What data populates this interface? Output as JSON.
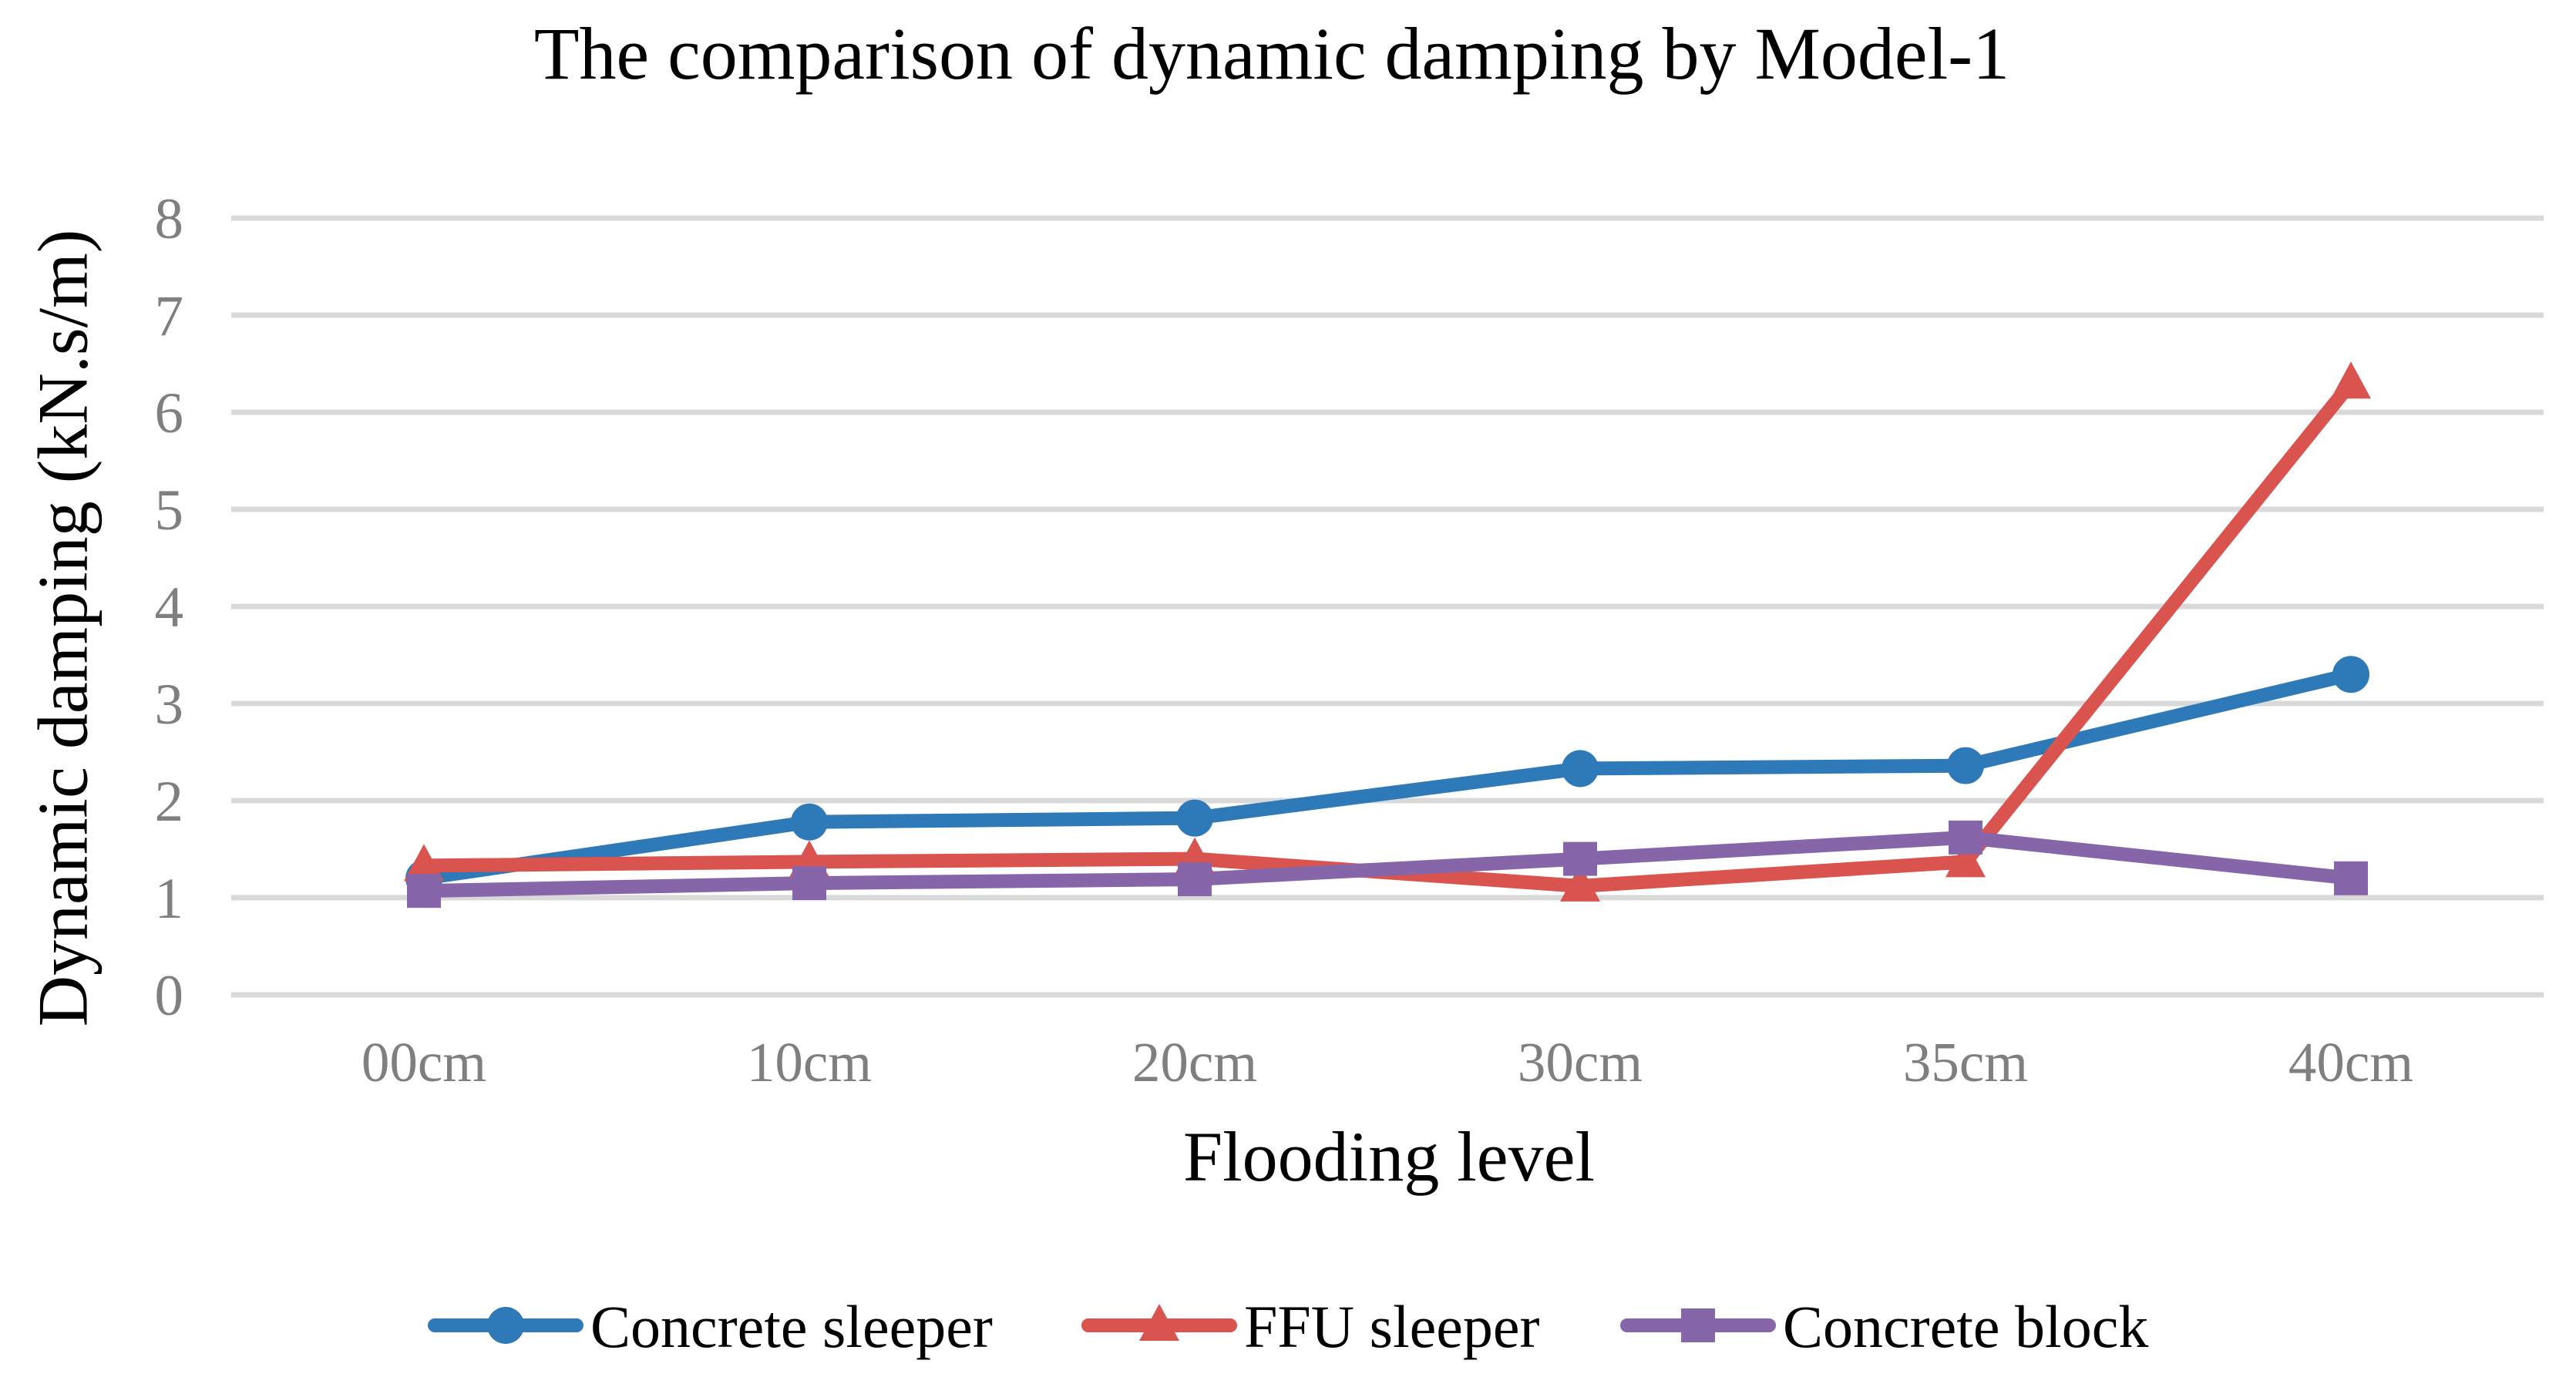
{
  "title": "The comparison of dynamic damping by Model-1",
  "chart_data": {
    "type": "line",
    "title": "The comparison of dynamic damping by Model-1",
    "xlabel": "Flooding level",
    "ylabel": "Dynamic damping (kN.s/m)",
    "categories": [
      "00cm",
      "10cm",
      "20cm",
      "30cm",
      "35cm",
      "40cm"
    ],
    "series": [
      {
        "name": "Concrete sleeper",
        "marker": "circle",
        "color": "#2E79B8",
        "values": [
          1.2,
          1.78,
          1.82,
          2.33,
          2.36,
          3.3
        ]
      },
      {
        "name": "FFU sleeper",
        "marker": "triangle",
        "color": "#D9534F",
        "values": [
          1.33,
          1.37,
          1.4,
          1.12,
          1.37,
          6.3
        ]
      },
      {
        "name": "Concrete block",
        "marker": "square",
        "color": "#8765A9",
        "values": [
          1.07,
          1.15,
          1.19,
          1.4,
          1.62,
          1.2
        ]
      }
    ],
    "ylim": [
      0,
      8
    ],
    "ytick_interval": 1,
    "yticks": [
      "0",
      "1",
      "2",
      "3",
      "4",
      "5",
      "6",
      "7",
      "8"
    ],
    "grid": "horizontal-only",
    "legend_position": "bottom"
  },
  "colors": {
    "background": "#FFFFFF",
    "gridline": "#D9D9D9",
    "tick_label": "#7F7F7F",
    "text": "#000000"
  }
}
